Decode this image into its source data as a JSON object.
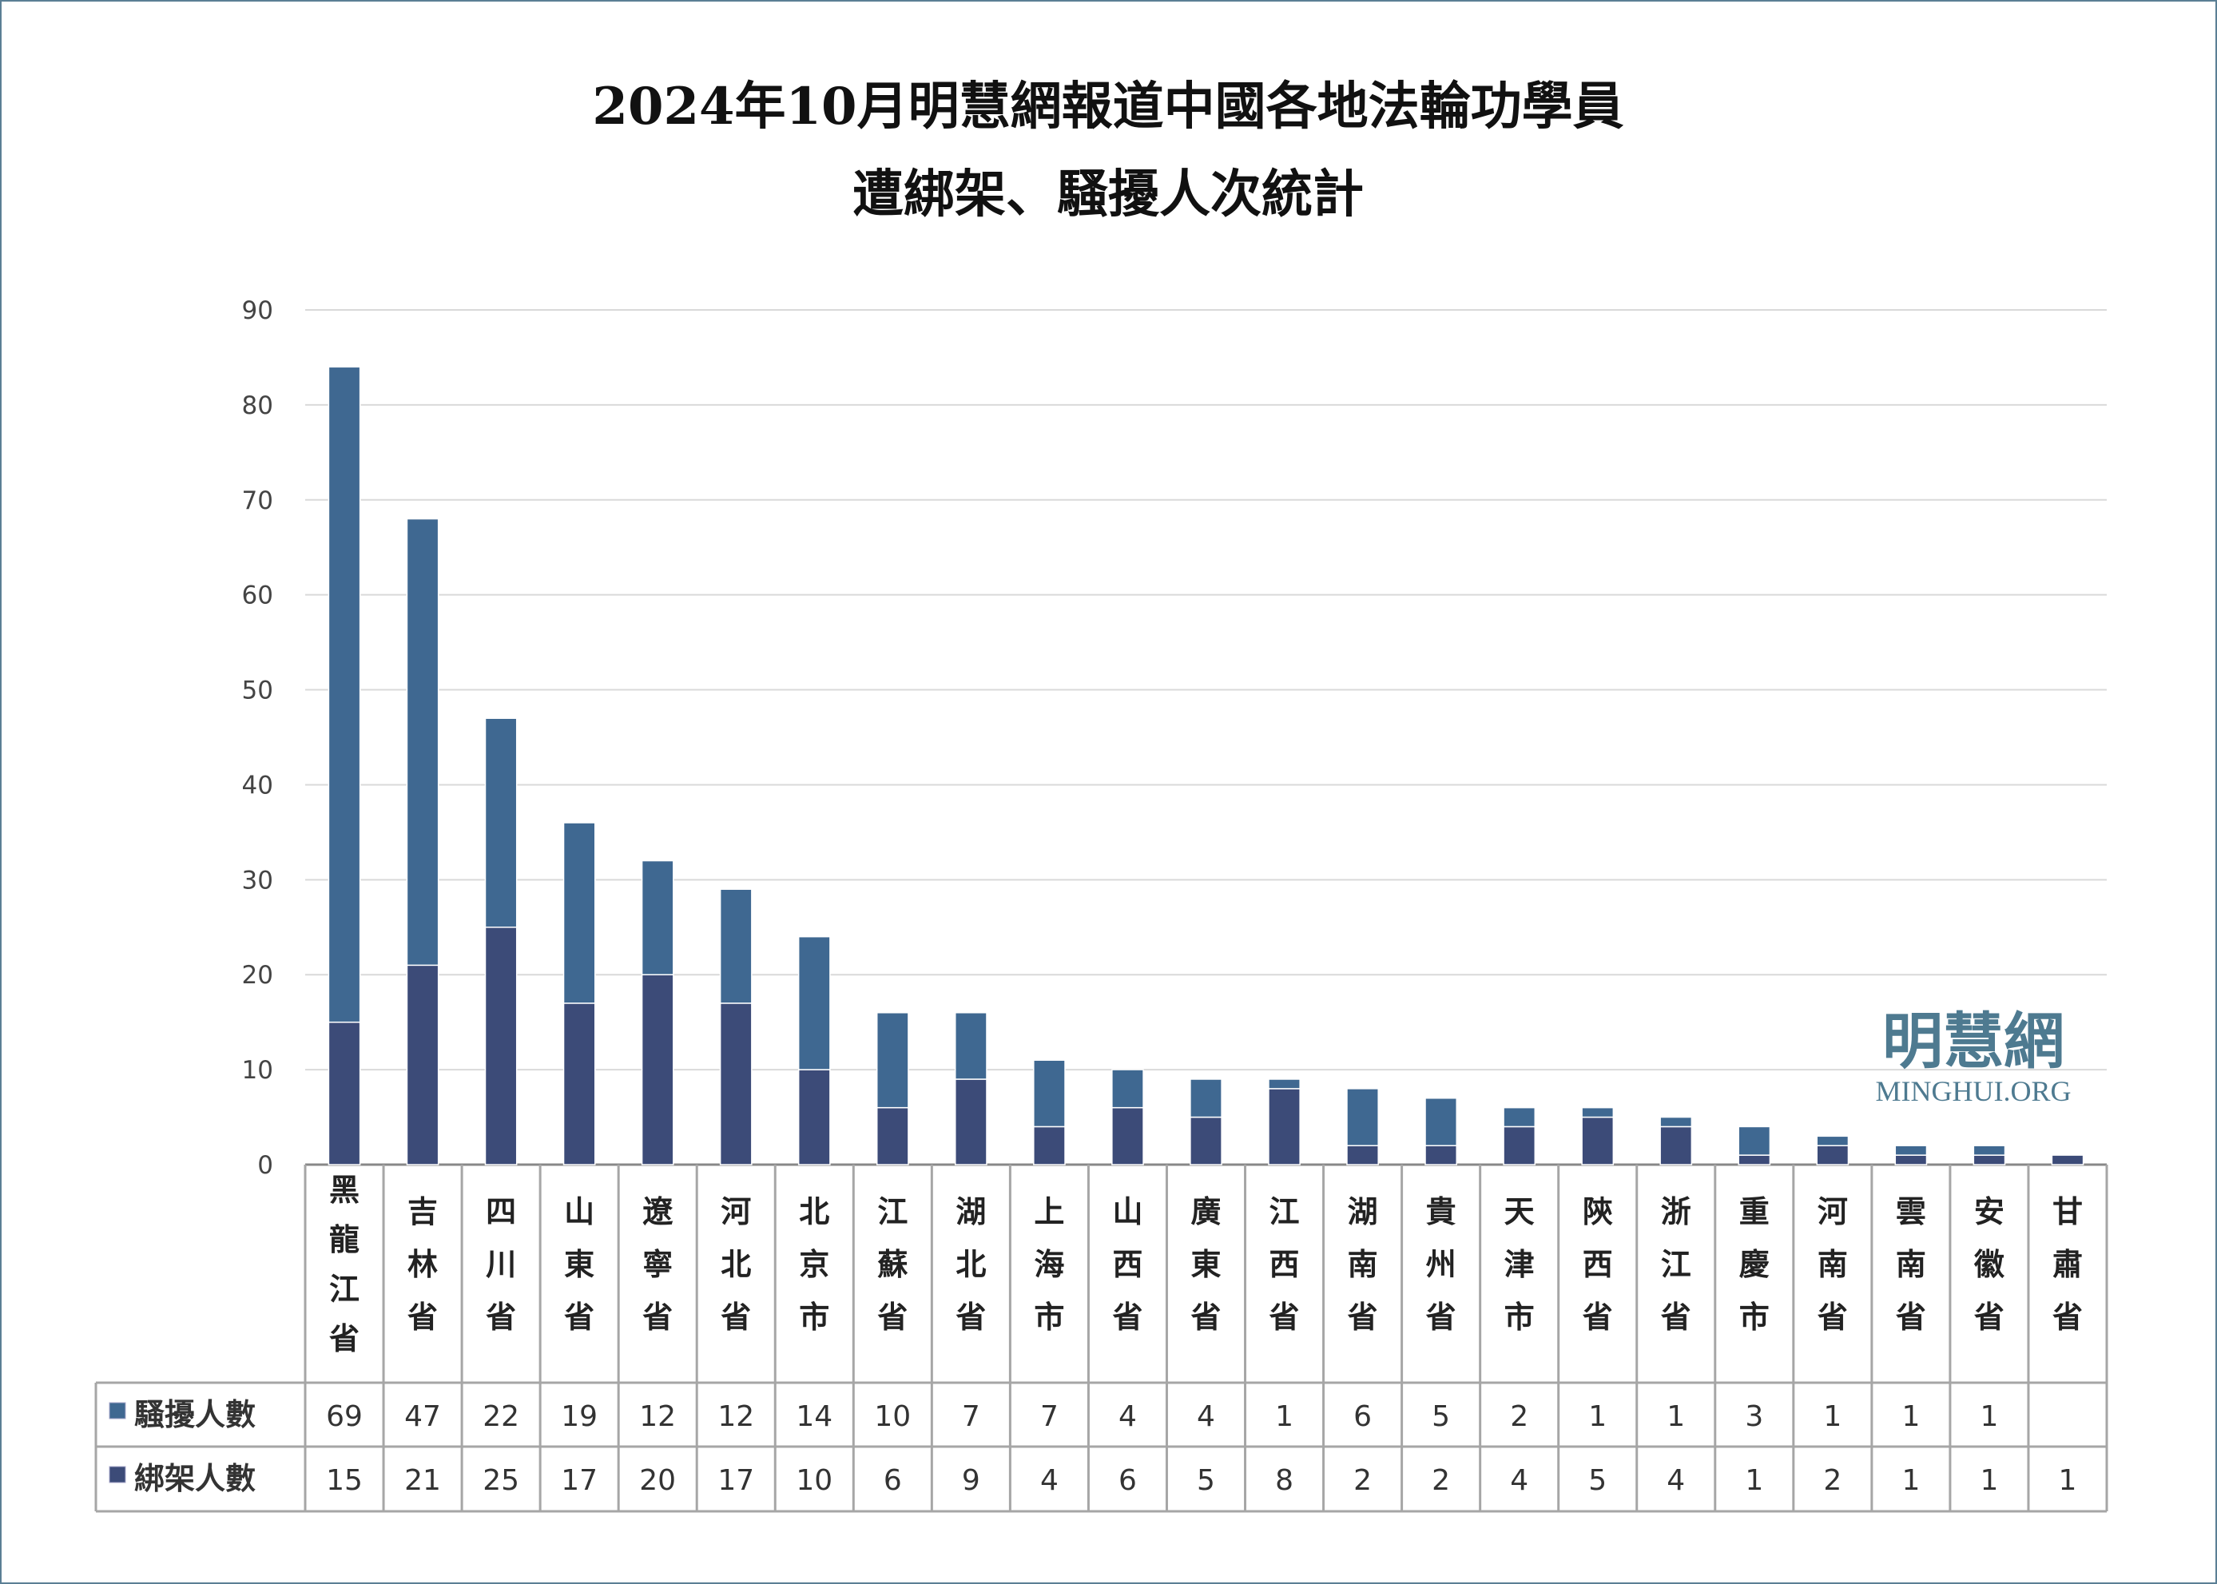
{
  "chart_data": {
    "type": "bar",
    "stacked": true,
    "title": "2024年10月明慧網報道中國各地法輪功學員",
    "subtitle": "遭綁架、騷擾人次統計",
    "categories": [
      "黑龍江省",
      "吉林省",
      "四川省",
      "山東省",
      "遼寧省",
      "河北省",
      "北京市",
      "江蘇省",
      "湖北省",
      "上海市",
      "山西省",
      "廣東省",
      "江西省",
      "湖南省",
      "貴州省",
      "天津市",
      "陝西省",
      "浙江省",
      "重慶市",
      "河南省",
      "雲南省",
      "安徽省",
      "甘肅省"
    ],
    "series": [
      {
        "name": "綁架人數",
        "color": "#3c4b78",
        "values": [
          15,
          21,
          25,
          17,
          20,
          17,
          10,
          6,
          9,
          4,
          6,
          5,
          8,
          2,
          2,
          4,
          5,
          4,
          1,
          2,
          1,
          1,
          1
        ]
      },
      {
        "name": "騷擾人數",
        "color": "#3f6891",
        "values": [
          69,
          47,
          22,
          19,
          12,
          12,
          14,
          10,
          7,
          7,
          4,
          4,
          1,
          6,
          5,
          2,
          1,
          1,
          3,
          1,
          1,
          1,
          null
        ]
      }
    ],
    "table_row_order": [
      "騷擾人數",
      "綁架人數"
    ],
    "ylim": [
      0,
      90
    ],
    "yticks": [
      0,
      10,
      20,
      30,
      40,
      50,
      60,
      70,
      80,
      90
    ],
    "grid": true,
    "legend": "data-table"
  },
  "watermark": {
    "chinese": "明慧網",
    "latin": "MINGHUI.ORG",
    "color": "#4e7a90"
  }
}
